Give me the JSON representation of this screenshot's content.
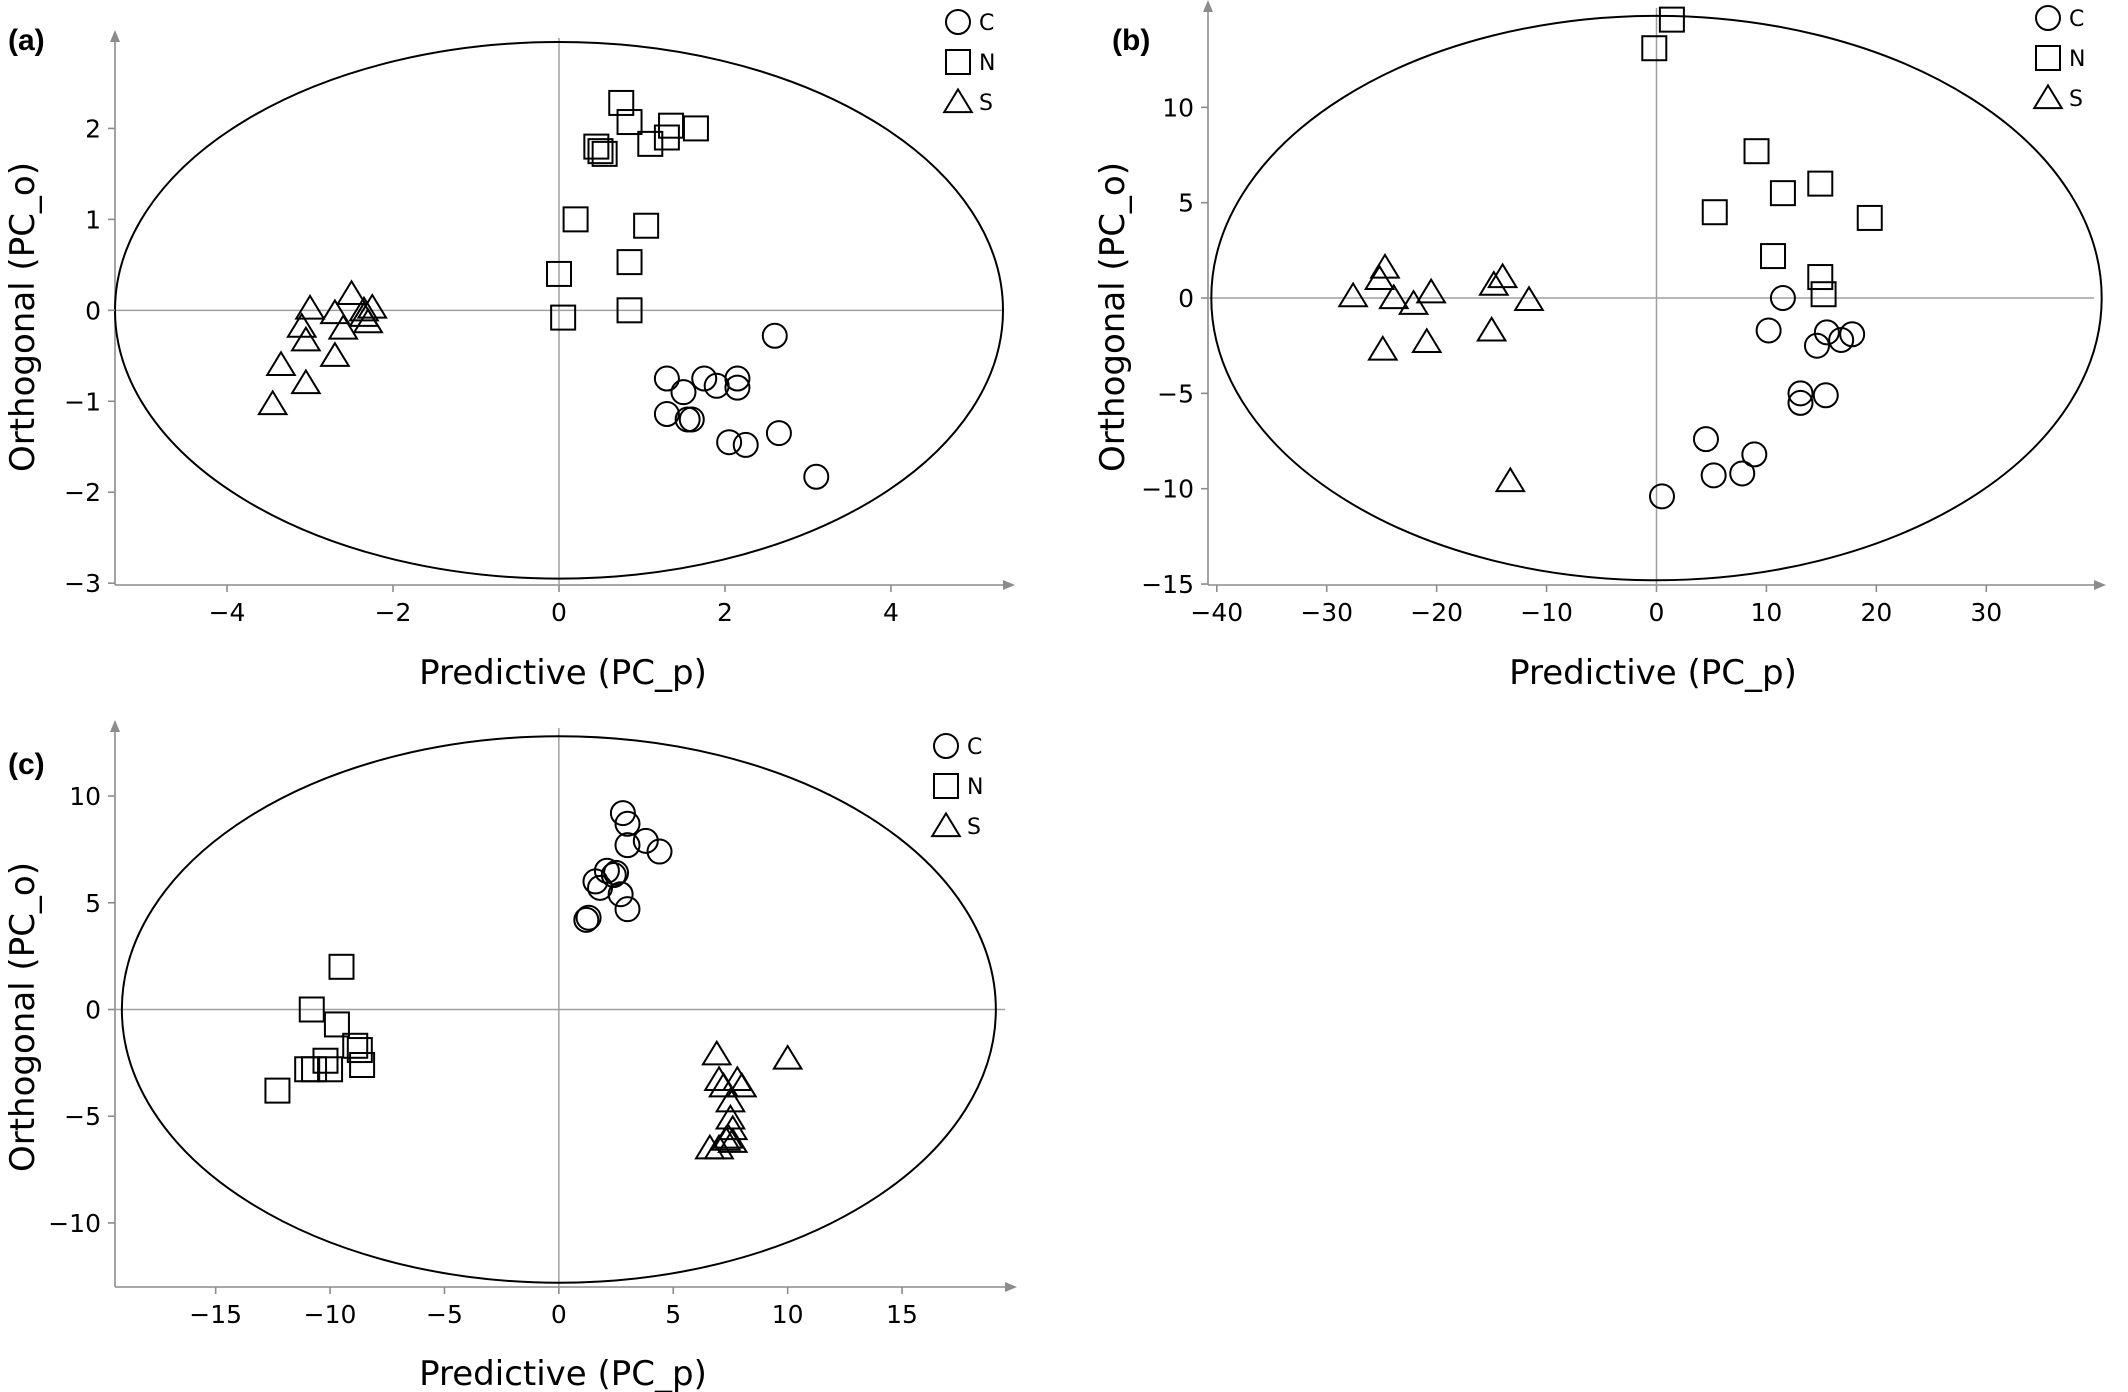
{
  "chart_data": [
    {
      "type": "scatter",
      "panel_label": "(a)",
      "xlabel": "Predictive (PC_p)",
      "ylabel": "Orthogonal (PC_o)",
      "xlim": [
        -5.3,
        5.3
      ],
      "ylim": [
        -3,
        2.9
      ],
      "xticks": [
        -4,
        -2,
        0,
        2,
        4
      ],
      "yticks": [
        -3,
        -2,
        -1,
        0,
        1,
        2
      ],
      "ellipse": {
        "cx": 0,
        "cy": 0,
        "rx": 5.35,
        "ry": 2.95
      },
      "legend": {
        "position": "top-right",
        "entries": [
          "C",
          "N",
          "S"
        ]
      },
      "series": [
        {
          "name": "C",
          "marker": "circle",
          "points": [
            [
              2.6,
              -0.28
            ],
            [
              1.3,
              -0.75
            ],
            [
              1.75,
              -0.75
            ],
            [
              1.5,
              -0.9
            ],
            [
              1.9,
              -0.83
            ],
            [
              2.15,
              -0.75
            ],
            [
              2.15,
              -0.85
            ],
            [
              1.3,
              -1.14
            ],
            [
              1.55,
              -1.2
            ],
            [
              1.6,
              -1.2
            ],
            [
              2.05,
              -1.45
            ],
            [
              2.25,
              -1.48
            ],
            [
              2.65,
              -1.35
            ],
            [
              3.1,
              -1.83
            ]
          ]
        },
        {
          "name": "N",
          "marker": "square",
          "points": [
            [
              0.75,
              2.28
            ],
            [
              0.85,
              2.07
            ],
            [
              1.35,
              2.03
            ],
            [
              1.65,
              2.0
            ],
            [
              0.45,
              1.8
            ],
            [
              0.5,
              1.75
            ],
            [
              0.55,
              1.72
            ],
            [
              1.1,
              1.83
            ],
            [
              1.3,
              1.9
            ],
            [
              0.2,
              1.0
            ],
            [
              1.05,
              0.93
            ],
            [
              0.85,
              0.53
            ],
            [
              0,
              0.4
            ],
            [
              0.05,
              -0.08
            ],
            [
              0.85,
              0
            ]
          ]
        },
        {
          "name": "S",
          "marker": "triangle",
          "points": [
            [
              -2.5,
              0.18
            ],
            [
              -3.0,
              0.02
            ],
            [
              -2.7,
              -0.03
            ],
            [
              -2.35,
              0.0
            ],
            [
              -2.25,
              0.03
            ],
            [
              -2.35,
              -0.06
            ],
            [
              -2.3,
              -0.13
            ],
            [
              -3.1,
              -0.18
            ],
            [
              -2.6,
              -0.2
            ],
            [
              -3.05,
              -0.33
            ],
            [
              -2.7,
              -0.5
            ],
            [
              -3.35,
              -0.6
            ],
            [
              -3.05,
              -0.8
            ],
            [
              -3.45,
              -1.03
            ]
          ]
        }
      ]
    },
    {
      "type": "scatter",
      "panel_label": "(b)",
      "xlabel": "Predictive (PC_p)",
      "ylabel": "Orthogonal (PC_o)",
      "xlim": [
        -40.5,
        39.5
      ],
      "ylim": [
        -15,
        15
      ],
      "xticks": [
        -40,
        -30,
        -20,
        -10,
        0,
        10,
        20,
        30
      ],
      "yticks": [
        -15,
        -10,
        -5,
        0,
        5,
        10
      ],
      "ellipse": {
        "cx": 0,
        "cy": 0,
        "rx": 40.5,
        "ry": 14.8
      },
      "legend": {
        "position": "top-right",
        "entries": [
          "C",
          "N",
          "S"
        ]
      },
      "series": [
        {
          "name": "C",
          "marker": "circle",
          "points": [
            [
              11.5,
              0.0
            ],
            [
              10.2,
              -1.7
            ],
            [
              15.5,
              -1.8
            ],
            [
              17.8,
              -1.9
            ],
            [
              16.8,
              -2.2
            ],
            [
              14.6,
              -2.5
            ],
            [
              13.1,
              -5.0
            ],
            [
              15.4,
              -5.1
            ],
            [
              13.1,
              -5.5
            ],
            [
              4.5,
              -7.4
            ],
            [
              8.9,
              -8.2
            ],
            [
              5.2,
              -9.3
            ],
            [
              7.8,
              -9.2
            ],
            [
              0.5,
              -10.4
            ]
          ]
        },
        {
          "name": "N",
          "marker": "square",
          "points": [
            [
              1.4,
              14.6
            ],
            [
              -0.2,
              13.1
            ],
            [
              9.1,
              7.7
            ],
            [
              14.9,
              6.0
            ],
            [
              11.5,
              5.5
            ],
            [
              5.3,
              4.5
            ],
            [
              19.4,
              4.2
            ],
            [
              10.6,
              2.2
            ],
            [
              14.9,
              1.1
            ],
            [
              15.2,
              0.2
            ]
          ]
        },
        {
          "name": "S",
          "marker": "triangle",
          "points": [
            [
              -24.7,
              1.6
            ],
            [
              -25.2,
              1.0
            ],
            [
              -14.0,
              1.1
            ],
            [
              -14.8,
              0.7
            ],
            [
              -20.5,
              0.3
            ],
            [
              -27.6,
              0.1
            ],
            [
              -23.9,
              0.0
            ],
            [
              -11.6,
              -0.1
            ],
            [
              -22.1,
              -0.3
            ],
            [
              -15.0,
              -1.7
            ],
            [
              -20.9,
              -2.3
            ],
            [
              -24.9,
              -2.7
            ],
            [
              -13.3,
              -9.6
            ]
          ]
        }
      ]
    },
    {
      "type": "scatter",
      "panel_label": "(c)",
      "xlabel": "Predictive (PC_p)",
      "ylabel": "Orthogonal (PC_o)",
      "xlim": [
        -19.3,
        19.5
      ],
      "ylim": [
        -13,
        13
      ],
      "xticks": [
        -15,
        -10,
        -5,
        0,
        5,
        10,
        15
      ],
      "yticks": [
        -10,
        -5,
        0,
        5,
        10
      ],
      "ellipse": {
        "cx": 0,
        "cy": 0,
        "rx": 19.1,
        "ry": 12.8
      },
      "legend": {
        "position": "top-right",
        "entries": [
          "C",
          "N",
          "S"
        ]
      },
      "series": [
        {
          "name": "C",
          "marker": "circle",
          "points": [
            [
              2.8,
              9.2
            ],
            [
              3.0,
              8.7
            ],
            [
              3.8,
              7.9
            ],
            [
              3.0,
              7.7
            ],
            [
              4.4,
              7.4
            ],
            [
              2.1,
              6.5
            ],
            [
              2.4,
              6.3
            ],
            [
              2.5,
              6.4
            ],
            [
              1.6,
              6.0
            ],
            [
              1.8,
              5.7
            ],
            [
              2.7,
              5.4
            ],
            [
              3.0,
              4.7
            ],
            [
              1.2,
              4.2
            ],
            [
              1.3,
              4.3
            ]
          ]
        },
        {
          "name": "N",
          "marker": "square",
          "points": [
            [
              -9.5,
              2.0
            ],
            [
              -10.8,
              0.0
            ],
            [
              -9.7,
              -0.7
            ],
            [
              -8.9,
              -1.7
            ],
            [
              -8.7,
              -1.9
            ],
            [
              -10.2,
              -2.4
            ],
            [
              -10.0,
              -2.8
            ],
            [
              -10.7,
              -2.8
            ],
            [
              -11.0,
              -2.8
            ],
            [
              -8.6,
              -2.6
            ],
            [
              -12.3,
              -3.8
            ]
          ]
        },
        {
          "name": "S",
          "marker": "triangle",
          "points": [
            [
              6.9,
              -2.1
            ],
            [
              10.0,
              -2.3
            ],
            [
              7.0,
              -3.3
            ],
            [
              7.8,
              -3.3
            ],
            [
              7.2,
              -3.6
            ],
            [
              8.0,
              -3.6
            ],
            [
              7.5,
              -4.3
            ],
            [
              7.5,
              -5.1
            ],
            [
              7.6,
              -5.6
            ],
            [
              7.4,
              -6.0
            ],
            [
              7.6,
              -6.2
            ],
            [
              7.3,
              -6.1
            ],
            [
              7.0,
              -6.5
            ],
            [
              6.6,
              -6.5
            ]
          ]
        }
      ]
    }
  ]
}
